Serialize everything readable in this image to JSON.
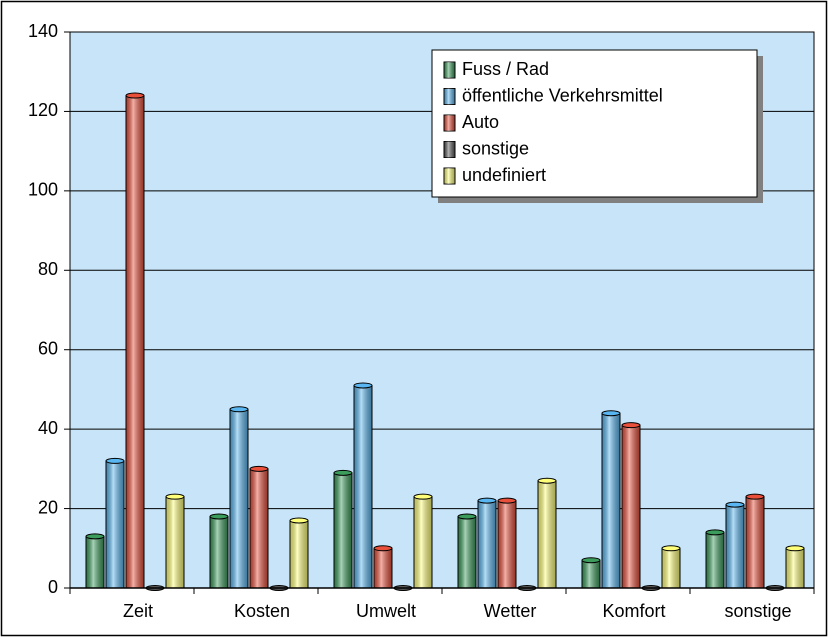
{
  "chart_data": {
    "type": "bar",
    "categories": [
      "Zeit",
      "Kosten",
      "Umwelt",
      "Wetter",
      "Komfort",
      "sonstige"
    ],
    "series": [
      {
        "name": "Fuss / Rad",
        "color": "#3c9c5c",
        "values": [
          13,
          18,
          29,
          18,
          7,
          14
        ]
      },
      {
        "name": "öffentliche Verkehrsmittel",
        "color": "#5ab6f0",
        "values": [
          32,
          45,
          51,
          22,
          44,
          21
        ]
      },
      {
        "name": "Auto",
        "color": "#e8503c",
        "values": [
          124,
          30,
          10,
          22,
          41,
          23
        ]
      },
      {
        "name": "sonstige",
        "color": "#5a5a5a",
        "values": [
          0,
          0,
          0,
          0,
          0,
          0
        ]
      },
      {
        "name": "undefiniert",
        "color": "#ffff7a",
        "values": [
          23,
          17,
          23,
          27,
          10,
          10
        ]
      }
    ],
    "ylim": [
      0,
      140
    ],
    "yticks": [
      0,
      20,
      40,
      60,
      80,
      100,
      120,
      140
    ],
    "grid": true,
    "background": "#c8e4f8",
    "legend": "top-right"
  }
}
